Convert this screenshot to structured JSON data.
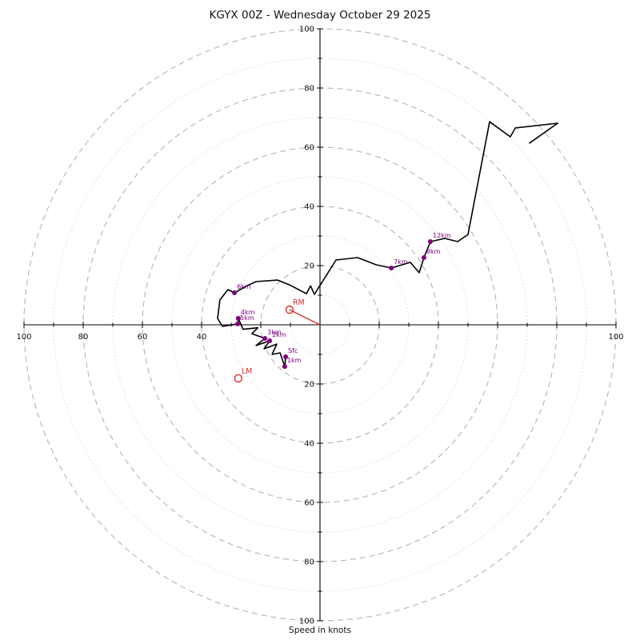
{
  "figure": {
    "title": "KGYX 00Z - Wednesday October 29 2025",
    "xlabel": "Speed in knots"
  },
  "chart_data": {
    "type": "line",
    "subtype": "hodograph",
    "title": "KGYX 00Z - Wednesday October 29 2025",
    "xlabel": "Speed in knots",
    "units": "knots",
    "axis_range": [
      -100,
      100
    ],
    "ring_interval_major": 20,
    "ring_interval_minor": 10,
    "grid": "polar-rings-dashed",
    "x_tick_labels": [
      {
        "value": -100,
        "label": "100"
      },
      {
        "value": -80,
        "label": "80"
      },
      {
        "value": -60,
        "label": "60"
      },
      {
        "value": -40,
        "label": "40"
      },
      {
        "value": 100,
        "label": "100"
      }
    ],
    "y_tick_labels": [
      {
        "value": 100,
        "label": "100"
      },
      {
        "value": 80,
        "label": "80"
      },
      {
        "value": 60,
        "label": "60"
      },
      {
        "value": 40,
        "label": "40"
      },
      {
        "value": 20,
        "label": "20"
      },
      {
        "value": -20,
        "label": "20"
      },
      {
        "value": -40,
        "label": "40"
      },
      {
        "value": -60,
        "label": "60"
      },
      {
        "value": -80,
        "label": "80"
      },
      {
        "value": -100,
        "label": "100"
      }
    ],
    "trace_uv_knots": [
      [
        -11.6,
        -10.8
      ],
      [
        -11.9,
        -14.1
      ],
      [
        -13.5,
        -9.5
      ],
      [
        -16.2,
        -10.0
      ],
      [
        -14.6,
        -6.5
      ],
      [
        -18.9,
        -8.1
      ],
      [
        -17.0,
        -5.4
      ],
      [
        -21.6,
        -7.0
      ],
      [
        -18.6,
        -4.6
      ],
      [
        -23.0,
        -3.0
      ],
      [
        -21.0,
        -1.0
      ],
      [
        -26.0,
        -1.5
      ],
      [
        -27.6,
        2.2
      ],
      [
        -27.8,
        0.3
      ],
      [
        -33.0,
        -0.5
      ],
      [
        -34.6,
        2.2
      ],
      [
        -33.8,
        8.4
      ],
      [
        -31.1,
        11.9
      ],
      [
        -28.9,
        10.8
      ],
      [
        -25.0,
        13.0
      ],
      [
        -21.6,
        14.6
      ],
      [
        -14.3,
        15.1
      ],
      [
        -10.3,
        13.5
      ],
      [
        -4.6,
        10.5
      ],
      [
        -3.2,
        13.2
      ],
      [
        -1.9,
        10.3
      ],
      [
        5.4,
        21.9
      ],
      [
        12.7,
        22.7
      ],
      [
        18.9,
        20.3
      ],
      [
        24.1,
        19.2
      ],
      [
        30.5,
        21.1
      ],
      [
        33.5,
        17.6
      ],
      [
        35.1,
        22.7
      ],
      [
        37.3,
        28.1
      ],
      [
        42.2,
        29.2
      ],
      [
        46.5,
        28.1
      ],
      [
        50.0,
        30.5
      ],
      [
        57.3,
        68.6
      ],
      [
        64.3,
        63.5
      ],
      [
        66.0,
        66.5
      ],
      [
        80.3,
        68.1
      ],
      [
        70.8,
        61.4
      ]
    ],
    "height_markers": [
      {
        "label": "Sfc",
        "u": -11.6,
        "v": -10.8
      },
      {
        "label": "1km",
        "u": -11.9,
        "v": -14.1
      },
      {
        "label": "2km",
        "u": -17.0,
        "v": -5.4
      },
      {
        "label": "3km",
        "u": -18.6,
        "v": -4.6
      },
      {
        "label": "4km",
        "u": -27.6,
        "v": 2.2
      },
      {
        "label": "5km",
        "u": -27.8,
        "v": 0.3
      },
      {
        "label": "6km",
        "u": -28.9,
        "v": 10.8
      },
      {
        "label": "7km",
        "u": 24.1,
        "v": 19.2
      },
      {
        "label": "8km",
        "u": 35.1,
        "v": 22.7
      },
      {
        "label": "12km",
        "u": 37.3,
        "v": 28.1
      }
    ],
    "storm_motion": {
      "right_mover": {
        "label": "RM",
        "u": -10.3,
        "v": 5.1
      },
      "left_mover": {
        "label": "LM",
        "u": -27.6,
        "v": -18.1
      }
    },
    "colors": {
      "trace": "#000000",
      "height_marker": "#800080",
      "storm_motion": "#e02b2b",
      "grid_major": "#b3b3b3",
      "grid_minor": "#d6d6d6",
      "axis": "#000000"
    }
  }
}
